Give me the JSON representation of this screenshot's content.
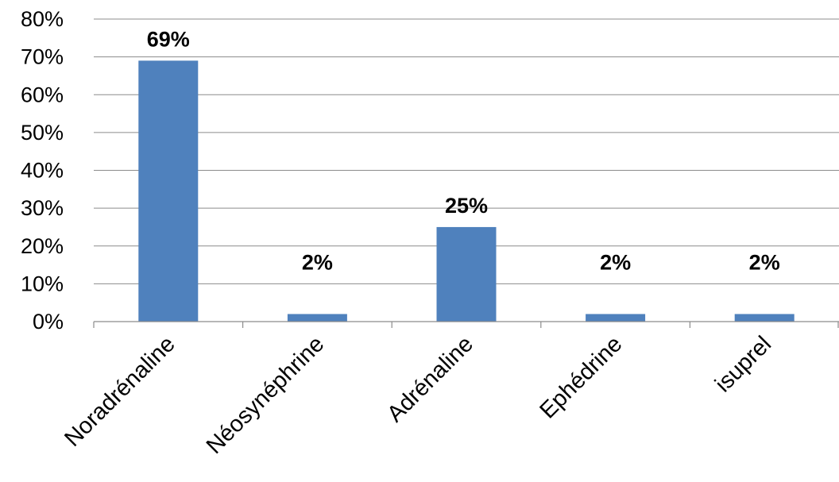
{
  "chart_data": {
    "type": "bar",
    "title": "",
    "xlabel": "",
    "ylabel": "",
    "categories": [
      "Noradrénaline",
      "Néosynéphrine",
      "Adrénaline",
      "Ephédrine",
      "isuprel"
    ],
    "values": [
      69,
      2,
      25,
      2,
      2
    ],
    "value_labels": [
      "69%",
      "2%",
      "25%",
      "2%",
      "2%"
    ],
    "ylim": [
      0,
      80
    ],
    "yticks": [
      0,
      10,
      20,
      30,
      40,
      50,
      60,
      70,
      80
    ],
    "ytick_labels": [
      "0%",
      "10%",
      "20%",
      "30%",
      "40%",
      "50%",
      "60%",
      "70%",
      "80%"
    ],
    "grid": true,
    "legend": "none",
    "bar_color": "#4f81bd",
    "grid_color": "#8c8c8c"
  }
}
